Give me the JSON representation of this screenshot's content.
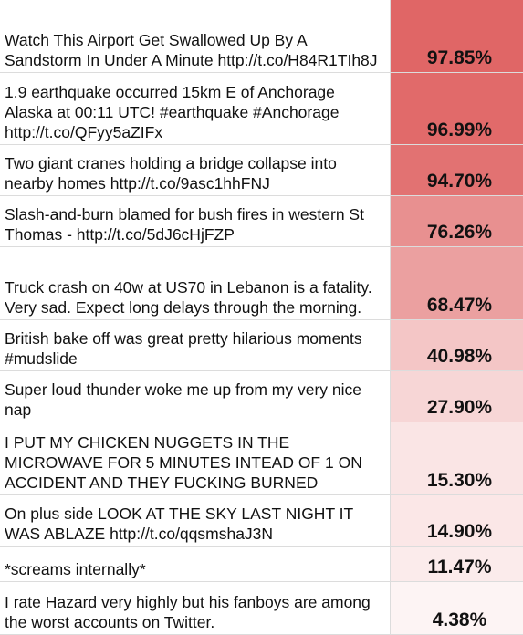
{
  "rows": [
    {
      "text": "Watch This Airport Get Swallowed Up By A Sandstorm In Under A Minute http://t.co/H84R1TIh8J",
      "score": "97.85%",
      "value": 97.85,
      "color": "#e06666",
      "height": 79
    },
    {
      "text": "1.9 earthquake occurred 15km E of Anchorage Alaska at 00:11 UTC! #earthquake #Anchorage http://t.co/QFyy5aZIFx",
      "score": "96.99%",
      "value": 96.99,
      "color": "#e16a6a",
      "height": 79
    },
    {
      "text": "Two giant cranes holding a bridge collapse into nearby homes http://t.co/9asc1hhFNJ",
      "score": "94.70%",
      "value": 94.7,
      "color": "#e27272",
      "height": 56
    },
    {
      "text": "Slash-and-burn blamed for bush fires in western St Thomas - http://t.co/5dJ6cHjFZP",
      "score": "76.26%",
      "value": 76.26,
      "color": "#e89090",
      "height": 56
    },
    {
      "text": "Truck crash on 40w at US70 in Lebanon is a fatality. Very sad. Expect long delays through the morning.",
      "score": "68.47%",
      "value": 68.47,
      "color": "#eba0a0",
      "height": 80
    },
    {
      "text": "British bake off was great pretty hilarious moments #mudslide",
      "score": "40.98%",
      "value": 40.98,
      "color": "#f4c6c6",
      "height": 56
    },
    {
      "text": "Super loud thunder woke me up from my very nice nap",
      "score": "27.90%",
      "value": 27.9,
      "color": "#f7d6d6",
      "height": 56
    },
    {
      "text": "I PUT MY CHICKEN NUGGETS IN THE MICROWAVE FOR 5 MINUTES INTEAD OF 1 ON ACCIDENT AND THEY FUCKING BURNED",
      "score": "15.30%",
      "value": 15.3,
      "color": "#fae5e5",
      "height": 80
    },
    {
      "text": "On plus side LOOK AT THE SKY LAST NIGHT IT WAS ABLAZE http://t.co/qqsmshaJ3N",
      "score": "14.90%",
      "value": 14.9,
      "color": "#fbe7e7",
      "height": 56
    },
    {
      "text": "*screams internally*",
      "score": "11.47%",
      "value": 11.47,
      "color": "#fbebeb",
      "height": 39
    },
    {
      "text": "I rate Hazard very highly but his fanboys are among the worst accounts on Twitter.",
      "score": "4.38%",
      "value": 4.38,
      "color": "#fdf4f4",
      "height": 58
    }
  ]
}
